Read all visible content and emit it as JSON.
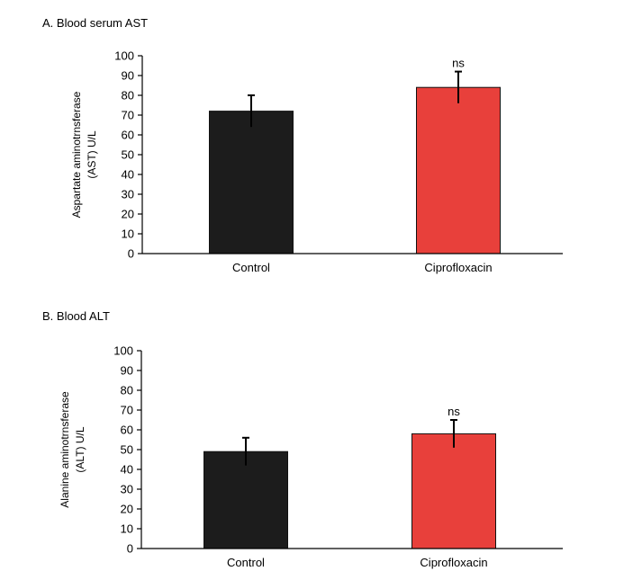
{
  "chart_data": [
    {
      "type": "bar",
      "title": "A.  Blood serum AST",
      "ylabel_lines": [
        "Aspartate aminotrnsferase",
        "(AST) U/L"
      ],
      "categories": [
        "Control",
        "Ciprofloxacin"
      ],
      "values": [
        72,
        84
      ],
      "errors": [
        8,
        8
      ],
      "annotations": [
        "",
        "ns"
      ],
      "bar_colors": [
        "#1c1c1c",
        "#e8403b"
      ],
      "ylim": [
        0,
        100
      ],
      "yticks": [
        0,
        10,
        20,
        30,
        40,
        50,
        60,
        70,
        80,
        90,
        100
      ],
      "grid": false,
      "legend": "none"
    },
    {
      "type": "bar",
      "title": "B.  Blood ALT",
      "ylabel_lines": [
        "Alanine aminotrnsferase",
        "(ALT) U/L"
      ],
      "categories": [
        "Control",
        "Ciprofloxacin"
      ],
      "values": [
        49,
        58
      ],
      "errors": [
        7,
        7
      ],
      "annotations": [
        "",
        "ns"
      ],
      "bar_colors": [
        "#1c1c1c",
        "#e8403b"
      ],
      "ylim": [
        0,
        100
      ],
      "yticks": [
        0,
        10,
        20,
        30,
        40,
        50,
        60,
        70,
        80,
        90,
        100
      ],
      "grid": false,
      "legend": "none"
    }
  ]
}
